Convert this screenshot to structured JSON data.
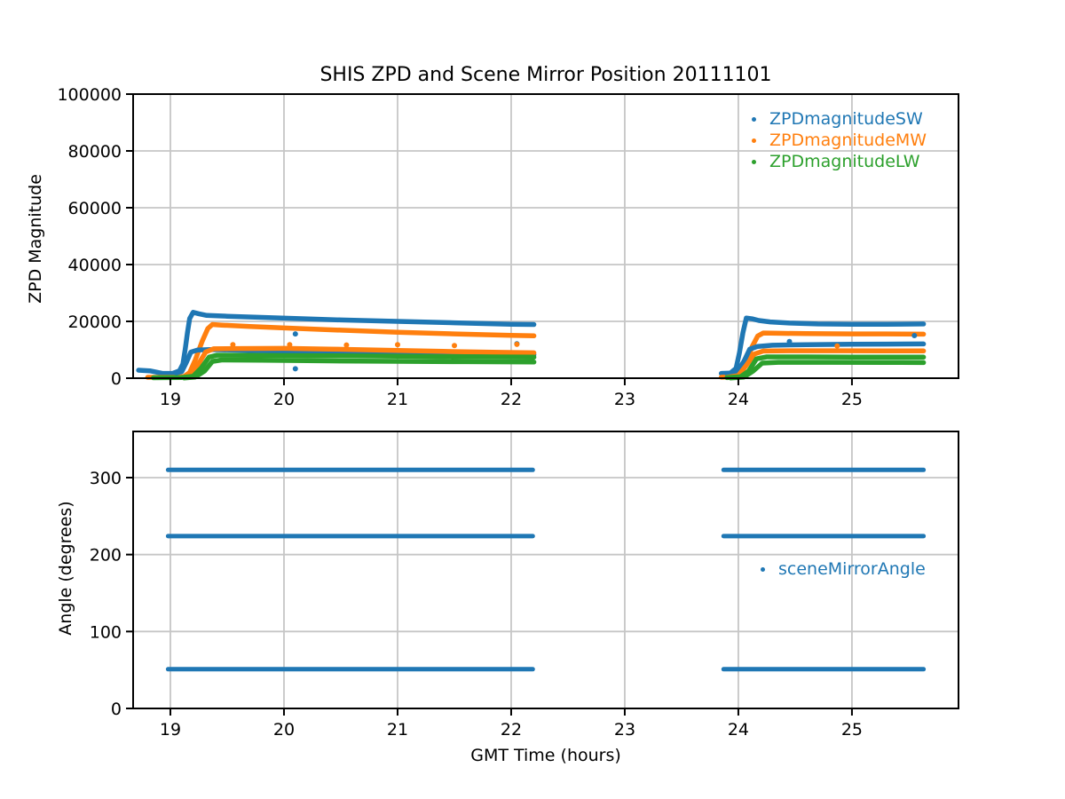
{
  "title": "SHIS ZPD and Scene Mirror Position 20111101",
  "colors": {
    "blue": "#1f77b4",
    "orange": "#ff7f0e",
    "green": "#2ca02c",
    "grid": "#c6c6c6",
    "spine": "#000000"
  },
  "chart_data": [
    {
      "type": "scatter",
      "title": "SHIS ZPD and Scene Mirror Position 20111101",
      "xlabel": "",
      "ylabel": "ZPD Magnitude",
      "xlim": [
        18.672,
        25.938
      ],
      "ylim": [
        0,
        100000
      ],
      "xticks": [
        19,
        20,
        21,
        22,
        23,
        24,
        25
      ],
      "yticks": [
        0,
        20000,
        40000,
        60000,
        80000,
        100000
      ],
      "grid": true,
      "legend_position": "upper right",
      "legend": [
        {
          "label": "ZPDmagnitudeSW",
          "color": "#1f77b4"
        },
        {
          "label": "ZPDmagnitudeMW",
          "color": "#ff7f0e"
        },
        {
          "label": "ZPDmagnitudeLW",
          "color": "#2ca02c"
        }
      ],
      "series": [
        {
          "name": "ZPDmagnitudeSW-upper",
          "color": "#1f77b4",
          "lw": 5.5,
          "segments": [
            [
              [
                18.72,
                2800
              ],
              [
                18.82,
                2600
              ],
              [
                18.93,
                1700
              ],
              [
                19.02,
                1700
              ],
              [
                19.08,
                2600
              ],
              [
                19.11,
                5000
              ],
              [
                19.13,
                10000
              ],
              [
                19.15,
                16000
              ],
              [
                19.17,
                21000
              ],
              [
                19.2,
                23200
              ],
              [
                19.25,
                22700
              ],
              [
                19.32,
                22100
              ],
              [
                19.5,
                21800
              ],
              [
                19.8,
                21400
              ],
              [
                20.1,
                21000
              ],
              [
                20.5,
                20500
              ],
              [
                21.0,
                20000
              ],
              [
                21.5,
                19500
              ],
              [
                22.0,
                19000
              ],
              [
                22.2,
                18900
              ]
            ],
            [
              [
                23.85,
                1700
              ],
              [
                23.93,
                1800
              ],
              [
                23.98,
                3500
              ],
              [
                24.01,
                9000
              ],
              [
                24.04,
                16000
              ],
              [
                24.07,
                21200
              ],
              [
                24.12,
                20900
              ],
              [
                24.18,
                20300
              ],
              [
                24.28,
                19800
              ],
              [
                24.45,
                19400
              ],
              [
                24.7,
                19100
              ],
              [
                25.0,
                19000
              ],
              [
                25.3,
                19000
              ],
              [
                25.63,
                19100
              ]
            ]
          ]
        },
        {
          "name": "ZPDmagnitudeMW-upper",
          "color": "#ff7f0e",
          "lw": 5.5,
          "segments": [
            [
              [
                18.8,
                300
              ],
              [
                19.05,
                350
              ],
              [
                19.12,
                600
              ],
              [
                19.17,
                2000
              ],
              [
                19.22,
                6500
              ],
              [
                19.28,
                13000
              ],
              [
                19.33,
                17500
              ],
              [
                19.37,
                18900
              ],
              [
                19.45,
                18700
              ],
              [
                19.7,
                18200
              ],
              [
                20.0,
                17700
              ],
              [
                20.5,
                16900
              ],
              [
                21.0,
                16200
              ],
              [
                21.5,
                15600
              ],
              [
                22.0,
                15100
              ],
              [
                22.2,
                14900
              ]
            ],
            [
              [
                23.85,
                350
              ],
              [
                23.97,
                500
              ],
              [
                24.02,
                1500
              ],
              [
                24.07,
                5500
              ],
              [
                24.12,
                11000
              ],
              [
                24.17,
                14800
              ],
              [
                24.22,
                15900
              ],
              [
                24.35,
                15800
              ],
              [
                24.6,
                15700
              ],
              [
                25.0,
                15600
              ],
              [
                25.3,
                15600
              ],
              [
                25.63,
                15500
              ]
            ]
          ]
        },
        {
          "name": "ZPDmagnitudeSW-lower",
          "color": "#1f77b4",
          "lw": 5.5,
          "segments": [
            [
              [
                19.05,
                1800
              ],
              [
                19.1,
                2300
              ],
              [
                19.14,
                5500
              ],
              [
                19.18,
                9200
              ],
              [
                19.24,
                9900
              ],
              [
                19.35,
                10050
              ],
              [
                19.6,
                9850
              ],
              [
                20.0,
                9500
              ],
              [
                20.4,
                9000
              ],
              [
                20.8,
                8650
              ],
              [
                21.3,
                8400
              ],
              [
                21.8,
                8300
              ],
              [
                22.2,
                8250
              ]
            ],
            [
              [
                23.9,
                1600
              ],
              [
                23.99,
                2200
              ],
              [
                24.05,
                6000
              ],
              [
                24.1,
                10200
              ],
              [
                24.17,
                11200
              ],
              [
                24.3,
                11600
              ],
              [
                24.6,
                11800
              ],
              [
                25.0,
                11950
              ],
              [
                25.3,
                12000
              ],
              [
                25.63,
                12050
              ]
            ]
          ]
        },
        {
          "name": "ZPDmagnitudeMW-lower",
          "color": "#ff7f0e",
          "lw": 5.5,
          "segments": [
            [
              [
                19.08,
                300
              ],
              [
                19.17,
                900
              ],
              [
                19.24,
                4500
              ],
              [
                19.31,
                9200
              ],
              [
                19.38,
                10350
              ],
              [
                19.6,
                10450
              ],
              [
                20.0,
                10500
              ],
              [
                20.4,
                10250
              ],
              [
                20.9,
                9850
              ],
              [
                21.4,
                9450
              ],
              [
                21.9,
                9100
              ],
              [
                22.2,
                8950
              ]
            ],
            [
              [
                23.9,
                300
              ],
              [
                24.0,
                900
              ],
              [
                24.07,
                4500
              ],
              [
                24.14,
                8500
              ],
              [
                24.22,
                9550
              ],
              [
                24.5,
                9650
              ],
              [
                24.9,
                9650
              ],
              [
                25.3,
                9600
              ],
              [
                25.63,
                9600
              ]
            ]
          ]
        },
        {
          "name": "ZPDmagnitudeLW-upper",
          "color": "#2ca02c",
          "lw": 5.5,
          "segments": [
            [
              [
                18.85,
                150
              ],
              [
                19.1,
                250
              ],
              [
                19.2,
                700
              ],
              [
                19.27,
                3500
              ],
              [
                19.34,
                7400
              ],
              [
                19.41,
                8100
              ],
              [
                19.7,
                8050
              ],
              [
                20.2,
                7950
              ],
              [
                20.8,
                7800
              ],
              [
                21.4,
                7600
              ],
              [
                22.2,
                7400
              ]
            ],
            [
              [
                23.9,
                200
              ],
              [
                24.02,
                500
              ],
              [
                24.09,
                2500
              ],
              [
                24.16,
                6800
              ],
              [
                24.25,
                7500
              ],
              [
                24.6,
                7500
              ],
              [
                25.0,
                7450
              ],
              [
                25.63,
                7400
              ]
            ]
          ]
        },
        {
          "name": "ZPDmagnitudeLW-lower",
          "color": "#2ca02c",
          "lw": 5.5,
          "segments": [
            [
              [
                19.12,
                100
              ],
              [
                19.22,
                400
              ],
              [
                19.3,
                2500
              ],
              [
                19.37,
                5900
              ],
              [
                19.45,
                6400
              ],
              [
                19.8,
                6300
              ],
              [
                20.4,
                6100
              ],
              [
                21.0,
                5950
              ],
              [
                21.6,
                5800
              ],
              [
                22.2,
                5700
              ]
            ],
            [
              [
                23.93,
                100
              ],
              [
                24.05,
                400
              ],
              [
                24.13,
                2500
              ],
              [
                24.21,
                5300
              ],
              [
                24.35,
                5600
              ],
              [
                24.8,
                5600
              ],
              [
                25.3,
                5550
              ],
              [
                25.63,
                5500
              ]
            ]
          ]
        }
      ],
      "outliers": [
        {
          "color": "#1f77b4",
          "points": [
            [
              20.1,
              15600
            ],
            [
              20.1,
              3300
            ],
            [
              22.05,
              12100
            ],
            [
              24.45,
              12900
            ],
            [
              25.55,
              15000
            ]
          ]
        },
        {
          "color": "#ff7f0e",
          "points": [
            [
              19.55,
              11800
            ],
            [
              20.05,
              11800
            ],
            [
              20.55,
              11700
            ],
            [
              21.0,
              11800
            ],
            [
              21.5,
              11500
            ],
            [
              22.05,
              11900
            ],
            [
              24.87,
              11300
            ]
          ]
        }
      ]
    },
    {
      "type": "scatter",
      "title": "",
      "xlabel": "GMT Time (hours)",
      "ylabel": "Angle (degrees)",
      "xlim": [
        18.672,
        25.938
      ],
      "ylim": [
        0,
        360
      ],
      "xticks": [
        19,
        20,
        21,
        22,
        23,
        24,
        25
      ],
      "yticks": [
        0,
        100,
        200,
        300
      ],
      "grid": true,
      "legend_position": "center right",
      "legend": [
        {
          "label": "sceneMirrorAngle",
          "color": "#1f77b4"
        }
      ],
      "series": [
        {
          "name": "sceneMirrorAngle",
          "color": "#1f77b4",
          "lw": 5,
          "angles": [
            310,
            224,
            51
          ],
          "segments": [
            [
              [
                18.98,
                310
              ],
              [
                22.19,
                310
              ]
            ],
            [
              [
                23.87,
                310
              ],
              [
                25.63,
                310
              ]
            ],
            [
              [
                18.98,
                224
              ],
              [
                22.19,
                224
              ]
            ],
            [
              [
                23.87,
                224
              ],
              [
                25.63,
                224
              ]
            ],
            [
              [
                18.98,
                51
              ],
              [
                22.19,
                51
              ]
            ],
            [
              [
                23.87,
                51
              ],
              [
                25.63,
                51
              ]
            ]
          ]
        }
      ],
      "outliers": []
    }
  ]
}
